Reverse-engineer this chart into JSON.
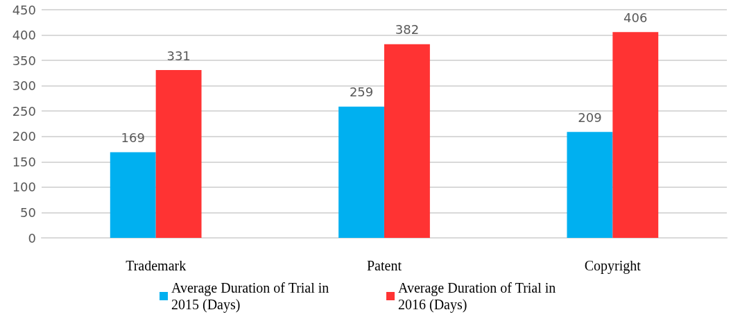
{
  "chart_data": {
    "type": "bar",
    "categories": [
      "Trademark",
      "Patent",
      "Copyright"
    ],
    "series": [
      {
        "name": "Average Duration of Trial in 2015 (Days)",
        "color": "#00b0f0",
        "values": [
          169,
          259,
          209
        ]
      },
      {
        "name": "Average Duration of Trial in 2016 (Days)",
        "color": "#ff3333",
        "values": [
          331,
          382,
          406
        ]
      }
    ],
    "ylim": [
      0,
      450
    ],
    "yticks": [
      0,
      50,
      100,
      150,
      200,
      250,
      300,
      350,
      400,
      450
    ],
    "grid": "y",
    "legend": "bottom",
    "data_labels": true
  }
}
